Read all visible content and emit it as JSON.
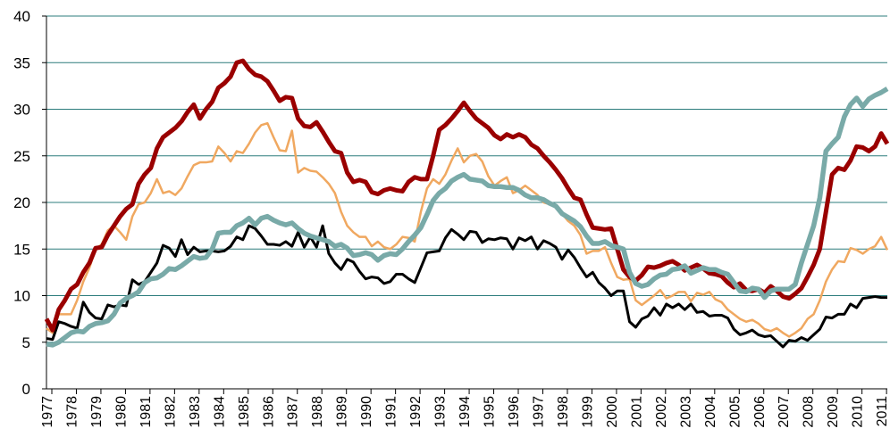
{
  "chart_data": {
    "type": "line",
    "categories": [
      "1977",
      null,
      null,
      null,
      "1978",
      null,
      null,
      null,
      "1979",
      null,
      null,
      null,
      "1980",
      null,
      null,
      null,
      "1981",
      null,
      null,
      null,
      "1982",
      null,
      null,
      null,
      "1983",
      null,
      null,
      null,
      "1984",
      null,
      null,
      null,
      "1985",
      null,
      null,
      null,
      "1986",
      null,
      null,
      null,
      "1987",
      null,
      null,
      null,
      "1988",
      null,
      null,
      null,
      "1989",
      null,
      null,
      null,
      "1990",
      null,
      null,
      null,
      "1991",
      null,
      null,
      null,
      "1992",
      null,
      null,
      null,
      "1993",
      null,
      null,
      null,
      "1994",
      null,
      null,
      null,
      "1995",
      null,
      null,
      null,
      "1996",
      null,
      null,
      null,
      "1997",
      null,
      null,
      null,
      "1998",
      null,
      null,
      null,
      "1999",
      null,
      null,
      null,
      "2000",
      null,
      null,
      null,
      "2001",
      null,
      null,
      null,
      "2002",
      null,
      null,
      null,
      "2003",
      null,
      null,
      null,
      "2004",
      null,
      null,
      null,
      "2005",
      null,
      null,
      null,
      "2006",
      null,
      null,
      null,
      "2007",
      null,
      null,
      null,
      "2008",
      null,
      null,
      null,
      "2009",
      null,
      null,
      null,
      "2010",
      null,
      null,
      null,
      "2011",
      null
    ],
    "series": [
      {
        "color": "#f0a860",
        "values": [
          6.5,
          6,
          8,
          8,
          8,
          9.5,
          11.5,
          13,
          15,
          15.5,
          17,
          17.5,
          16.8,
          16,
          18.5,
          19.8,
          20,
          21,
          22.5,
          21,
          21.2,
          20.8,
          21.5,
          22.8,
          24,
          24.3,
          24.3,
          24.4,
          26,
          25.3,
          24.4,
          25.5,
          25.3,
          26.3,
          27.5,
          28.3,
          28.5,
          27,
          25.6,
          25.5,
          27.7,
          23.2,
          23.7,
          23.4,
          23.3,
          22.7,
          22,
          21,
          19,
          17.5,
          16.8,
          16.3,
          16.3,
          15.3,
          15.8,
          15.2,
          15,
          15.5,
          16.3,
          16.2,
          15.8,
          19,
          21.5,
          22.5,
          22,
          23,
          24.5,
          25.8,
          24.3,
          25,
          25.2,
          24.4,
          22.8,
          21.8,
          22.3,
          22.7,
          21,
          21.3,
          21.8,
          21.3,
          20.8,
          20,
          19.8,
          19.5,
          18.8,
          18,
          17.5,
          16.5,
          14.5,
          14.8,
          14.8,
          15.2,
          13.5,
          12,
          11.7,
          11.8,
          9.5,
          9,
          9.5,
          10,
          10.6,
          9.7,
          10,
          10.4,
          10.4,
          9.4,
          10.3,
          10.1,
          10.4,
          9.6,
          9.3,
          8.5,
          8,
          7.5,
          7.2,
          7.4,
          7,
          6.4,
          6.2,
          6.5,
          6,
          5.6,
          6,
          6.5,
          7.5,
          8,
          9.5,
          11.5,
          12.8,
          13.7,
          13.6,
          15.1,
          14.9,
          14.5,
          15,
          15.3,
          16.3,
          14.9
        ]
      },
      {
        "color": "#000000",
        "values": [
          5.4,
          5.3,
          7.2,
          7,
          6.7,
          6.5,
          9.3,
          8.2,
          7.6,
          7.5,
          9,
          8.8,
          9,
          8.9,
          11.7,
          11.2,
          11.5,
          12.5,
          13.5,
          15.4,
          15.1,
          14.2,
          16,
          14.4,
          15.2,
          14.7,
          14.8,
          14.8,
          14.7,
          14.8,
          15.3,
          16.3,
          16,
          17.5,
          17.2,
          16.4,
          15.5,
          15.5,
          15.4,
          15.8,
          15.3,
          16.8,
          15.2,
          16.3,
          15.2,
          17.5,
          14.5,
          13.5,
          12.8,
          13.9,
          13.6,
          12.6,
          11.8,
          12,
          11.9,
          11.3,
          11.5,
          12.3,
          12.3,
          11.8,
          11.4,
          13,
          14.6,
          14.7,
          14.8,
          16.2,
          17.1,
          16.6,
          16,
          16.9,
          16.8,
          15.7,
          16.1,
          16,
          16.2,
          16.1,
          15,
          16.2,
          15.9,
          16.3,
          15,
          15.9,
          15.6,
          15.2,
          13.9,
          14.9,
          14.1,
          13,
          12,
          12.5,
          11.4,
          10.8,
          10,
          10.5,
          10.5,
          7.2,
          6.6,
          7.5,
          7.8,
          8.7,
          7.9,
          9.1,
          8.7,
          9.1,
          8.5,
          9.1,
          8.2,
          8.3,
          7.8,
          7.9,
          7.9,
          7.6,
          6.4,
          5.8,
          6,
          6.3,
          5.8,
          5.6,
          5.7,
          5.1,
          4.5,
          5.2,
          5.1,
          5.5,
          5.2,
          5.8,
          6.4,
          7.7,
          7.6,
          8,
          8,
          9.1,
          8.7,
          9.7,
          9.8,
          9.9,
          9.8,
          9.8
        ]
      },
      {
        "color": "#9a0000",
        "values": [
          7.5,
          6.3,
          8.5,
          9.5,
          10.7,
          11.2,
          12.5,
          13.5,
          15.1,
          15.2,
          16.5,
          17.5,
          18.5,
          19.3,
          19.8,
          22,
          23,
          23.7,
          25.8,
          27,
          27.5,
          28,
          28.7,
          29.7,
          30.5,
          29,
          30,
          30.8,
          32.3,
          32.8,
          33.5,
          35,
          35.2,
          34.3,
          33.7,
          33.5,
          33,
          32,
          30.9,
          31.3,
          31.2,
          29,
          28.2,
          28.1,
          28.6,
          27.6,
          26.5,
          25.5,
          25.3,
          23.2,
          22.2,
          22.4,
          22.2,
          21.1,
          20.9,
          21.3,
          21.5,
          21.3,
          21.2,
          22.2,
          22.7,
          22.5,
          22.5,
          25,
          27.8,
          28.3,
          29,
          29.8,
          30.7,
          29.8,
          29,
          28.5,
          28,
          27.2,
          26.8,
          27.3,
          27,
          27.3,
          27,
          26.2,
          25.8,
          25,
          24.3,
          23.5,
          22.6,
          21.5,
          20.5,
          20.3,
          18.7,
          17.3,
          17.2,
          17.1,
          17.2,
          15,
          12.8,
          12,
          11.6,
          12.2,
          13.1,
          13,
          13.2,
          13.5,
          13.7,
          13.3,
          12.7,
          13,
          13.3,
          12.9,
          12.4,
          12.3,
          12.1,
          11.4,
          10.9,
          11.3,
          10.6,
          10.5,
          10.7,
          10.3,
          11,
          10.5,
          9.9,
          9.7,
          10.2,
          10.8,
          12,
          13.3,
          15,
          19,
          23,
          23.7,
          23.5,
          24.5,
          26,
          25.9,
          25.5,
          26,
          27.4,
          26.3
        ]
      },
      {
        "color": "#79aaa8",
        "values": [
          4.8,
          4.7,
          5,
          5.5,
          6,
          6.2,
          6.1,
          6.7,
          7,
          7.1,
          7.3,
          8,
          9.2,
          9.7,
          10,
          10.4,
          11.4,
          11.8,
          11.9,
          12.3,
          12.9,
          12.8,
          13.2,
          13.7,
          14.2,
          14,
          14.1,
          15,
          16.7,
          16.8,
          16.8,
          17.5,
          17.8,
          18.3,
          17.6,
          18.3,
          18.5,
          18.1,
          17.8,
          17.6,
          17.8,
          17.2,
          16.7,
          16.4,
          16.2,
          16,
          15.8,
          15.3,
          15.5,
          15.1,
          14.3,
          14.4,
          14.6,
          14.4,
          13.8,
          14.3,
          14.5,
          14.4,
          15,
          15.8,
          16.5,
          17.3,
          18.7,
          20.2,
          21,
          21.5,
          22.3,
          22.7,
          23,
          22.5,
          22.4,
          22.3,
          21.8,
          21.7,
          21.7,
          21.6,
          21.6,
          21.3,
          20.8,
          20.5,
          20.5,
          20.3,
          19.9,
          19.6,
          18.8,
          18.4,
          18,
          17.4,
          16.4,
          15.6,
          15.6,
          15.8,
          15.4,
          15.2,
          15,
          12.5,
          11.3,
          11,
          11.2,
          11.8,
          12.2,
          12.3,
          12.8,
          12.9,
          13.2,
          12.4,
          12.7,
          13,
          12.8,
          12.8,
          12.5,
          12.3,
          11.4,
          10.5,
          10.4,
          10.8,
          10.7,
          9.8,
          10.5,
          10.7,
          10.7,
          10.7,
          11.2,
          13.5,
          15.5,
          17.5,
          20.5,
          25.5,
          26.3,
          27,
          29.2,
          30.5,
          31.2,
          30.3,
          31.1,
          31.5,
          31.8,
          32.2
        ]
      }
    ],
    "ylim": [
      0,
      40
    ],
    "yticks": [
      0,
      5,
      10,
      15,
      20,
      25,
      30,
      35,
      40
    ],
    "grid": true,
    "grid_color": "#2c7c7c"
  }
}
